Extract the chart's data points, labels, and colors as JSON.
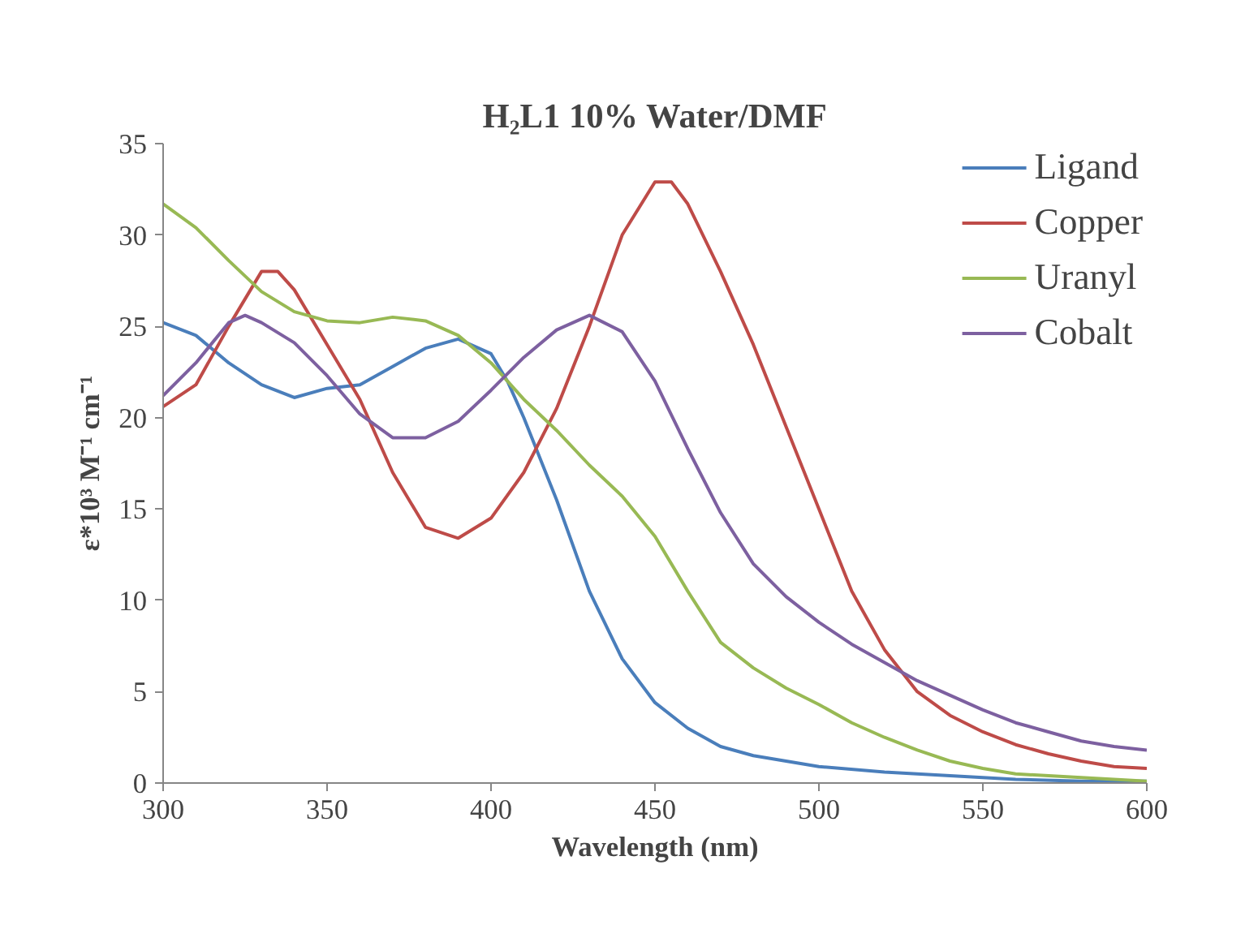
{
  "chart_data": {
    "type": "line",
    "title": "H₂L1 10% Water/DMF",
    "xlabel": "Wavelength (nm)",
    "ylabel": "ε*10³ M⁻¹ cm⁻¹",
    "xlim": [
      300,
      600
    ],
    "xticks": [
      300,
      350,
      400,
      450,
      500,
      550,
      600
    ],
    "ylim": [
      0,
      35
    ],
    "yticks": [
      0,
      5,
      10,
      15,
      20,
      25,
      30,
      35
    ],
    "grid": false,
    "legend": "top right",
    "marker": "none",
    "line_style": "solid",
    "series": [
      {
        "name": "Ligand",
        "color": "#4a7ebb",
        "x": [
          300,
          310,
          320,
          330,
          340,
          350,
          360,
          370,
          380,
          390,
          400,
          405,
          410,
          420,
          430,
          440,
          450,
          460,
          470,
          480,
          490,
          500,
          520,
          540,
          560,
          580,
          600
        ],
        "values": [
          25.2,
          24.5,
          23,
          21.8,
          21.1,
          21.6,
          21.8,
          22.8,
          23.8,
          24.3,
          23.5,
          22,
          20,
          15.5,
          10.5,
          6.8,
          4.4,
          3,
          2,
          1.5,
          1.2,
          0.9,
          0.6,
          0.4,
          0.2,
          0.1,
          0.1
        ]
      },
      {
        "name": "Copper",
        "color": "#be4b48",
        "x": [
          300,
          310,
          320,
          330,
          335,
          340,
          350,
          360,
          370,
          380,
          390,
          400,
          410,
          420,
          430,
          440,
          450,
          455,
          460,
          470,
          480,
          490,
          500,
          510,
          520,
          530,
          540,
          550,
          560,
          570,
          580,
          590,
          600
        ],
        "values": [
          20.6,
          21.8,
          25,
          28,
          28,
          27,
          24,
          21,
          17,
          14,
          13.4,
          14.5,
          17,
          20.5,
          25,
          30,
          32.9,
          32.9,
          31.7,
          28,
          24,
          19.5,
          15,
          10.5,
          7.3,
          5,
          3.7,
          2.8,
          2.1,
          1.6,
          1.2,
          0.9,
          0.8
        ]
      },
      {
        "name": "Uranyl",
        "color": "#98b954",
        "x": [
          300,
          310,
          320,
          330,
          340,
          350,
          360,
          370,
          380,
          390,
          400,
          410,
          420,
          430,
          440,
          450,
          460,
          470,
          480,
          490,
          500,
          510,
          520,
          530,
          540,
          550,
          560,
          580,
          600
        ],
        "values": [
          31.7,
          30.4,
          28.6,
          26.9,
          25.8,
          25.3,
          25.2,
          25.5,
          25.3,
          24.5,
          23,
          21,
          19.3,
          17.4,
          15.7,
          13.5,
          10.5,
          7.7,
          6.3,
          5.2,
          4.3,
          3.3,
          2.5,
          1.8,
          1.2,
          0.8,
          0.5,
          0.3,
          0.1
        ]
      },
      {
        "name": "Cobalt",
        "color": "#7d60a0",
        "x": [
          300,
          310,
          320,
          325,
          330,
          340,
          350,
          360,
          370,
          380,
          390,
          400,
          410,
          420,
          430,
          440,
          450,
          460,
          470,
          480,
          490,
          500,
          510,
          520,
          530,
          540,
          550,
          560,
          570,
          580,
          590,
          600
        ],
        "values": [
          21.2,
          23,
          25.2,
          25.6,
          25.2,
          24.1,
          22.3,
          20.2,
          18.9,
          18.9,
          19.8,
          21.5,
          23.3,
          24.8,
          25.6,
          24.7,
          22,
          18.3,
          14.8,
          12,
          10.2,
          8.8,
          7.6,
          6.6,
          5.6,
          4.8,
          4,
          3.3,
          2.8,
          2.3,
          2,
          1.8
        ]
      }
    ]
  }
}
